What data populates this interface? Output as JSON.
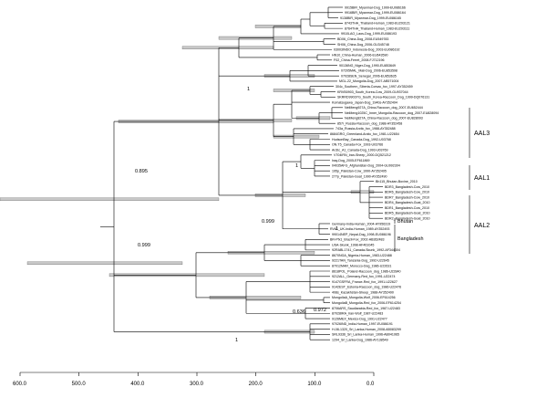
{
  "tips": [
    "9915BIR_Myanmar-Dog_1999-EU086166",
    "9916BIR_Myanmar-Dog_1999-EU086164",
    "9138BIR_Myanmar-Dog_1999-EU086165",
    "8743THA_Thailand-Human_1983-EU293121",
    "8764THA_Thailand-Human_1983-EU293111",
    "9910LAO_Laos-Dog_1999-EU086193",
    "BD06_China-Dog_2008-EU549783",
    "SH06_China-Dog_2006-GU345748",
    "03003INDO_Indonesia-Dog_2003-EU086192",
    "HN10_China-Human_2006-EU643590",
    "F02_China-Ferret_2008-FJ712196",
    "90136NG_Niger-Dog_1990-EU853649",
    "07205MAL_Mali-Dog_2006-EU853598",
    "07028SEN_Senegal_2006-EU853635",
    "MGL-22_Mongolia-Dog_2007-AB571004",
    "304c_Southern_Siberia-Corsac_fox_1997-AY352459",
    "KRVB0903_South_Korea-Cow_2009-GU937044",
    "SKRRD9903YG_South_Korea-Raccoon_Dog_1999-DQ076131",
    "Komatsugawa_Japan-Dog_1940s-AY352494",
    "NeiMeng927A_China-Raccoon_dog_2007-EU652444",
    "NeiMeng1025C_Inner_Mongolia-Raccoon_dog_2007-EU828094",
    "NeiMeng827A_China-Raccoon_dog_2007-EU828093",
    "857r_Russia-Raccoon_dog_1988-AY352458",
    "743a_Russia-Arctic_fox_1988-AY352488",
    "8684GRO_Greenland-Arctic_fox_1981-U22654",
    "HudsonBay_Canada-Dog_1992-U03768",
    "ON.T5_Canada-Fox_1993-U03766",
    "Arctic_A1_Canada-Dog_1993-U03769",
    "V704IRN_Iran-Sheep_2000-DQ521212",
    "Iraq-Dog_2005-EF611869",
    "04035AFG_Afghanistan-Dog_2004-GU992304",
    "195p_Pakistan-Cow_1990-AY352495",
    "277p_Pakistan-Goat_1990-AY352490",
    "Bh115_Bhutan-Bovine_2010",
    "BDR3_Bangladesh-Cow_2010",
    "BDR6_Bangladesh-Cow_2010",
    "BDR7_Bangladesh-Cow_2010",
    "BDR4_Bangladesh-Goat_2010",
    "BDR1_Bangladesh-Cow_2010",
    "BDR5_Bangladesh-Goat_2010",
    "BDR2_Bangladesh-Goat_2010",
    "Germany-India-Human_2004-AY956319",
    "RV61_UK-India-Human_1989-AY352493",
    "99014NEP_Nepal-Dog_1998-EU086196",
    "BR-Pfx1_Brazil-Fox_2002-AB362483",
    "USA-Skunk_1998-AF461045",
    "92RABL1741_Canada-Skunk_1992-AF344304",
    "8670NGA_Nigeria-Human_1983-U22488",
    "9221TAN_Tanzania-Dog_1992-U22645",
    "87012MAR_Morocco-Dog_1986-U22631",
    "8618POL_Poland-Raccoon_dog_1986-U22840",
    "9212ALL_Germany-Red_fox_1991-U22474",
    "9147GSFRA_France-Red_fox_1991-U22627",
    "9142EST_Estonia-Raccoon_dog_1986-U22476",
    "408s_Kazakhstan-Sheep_1988-AY352490",
    "MongoliaA_Mongolia-Wolf_2006-EF614256",
    "MongoliaB_Mongolia-Red_fox_2006-EF614254",
    "8706ARS_Saudiarabia-Red_fox_1987-U22483",
    "87028IRA_Iran-Wolf_1987-U22483",
    "9126MEX_Mexico-Dog_1991-U22477",
    "97026IND_India-Human_1997-EU086191",
    "H-08-1320_Sri_Lanka-Human_2008-AB083299",
    "SRL9336_Sri_Lanka-Human_1996-AB041965",
    "1294_Sri_Lanka-Dog_1986-AY138549"
  ],
  "node_labels": {
    "n1": "1",
    "n895": "0.895",
    "n1b": "1",
    "n999a": "0.999",
    "n999b": "0.999",
    "n1c": "1",
    "n636": "0.636",
    "n972": "0.972",
    "n1d": "1"
  },
  "clades": {
    "aal3": "AAL3",
    "aal1": "AAL1",
    "aal2": "AAL2",
    "bhutan": "Bhutan",
    "bangladesh": "Bangladesh"
  },
  "axis": {
    "ticks": [
      "600.0",
      "500.0",
      "400.0",
      "300.0",
      "200.0",
      "100.0",
      "0.0"
    ]
  }
}
